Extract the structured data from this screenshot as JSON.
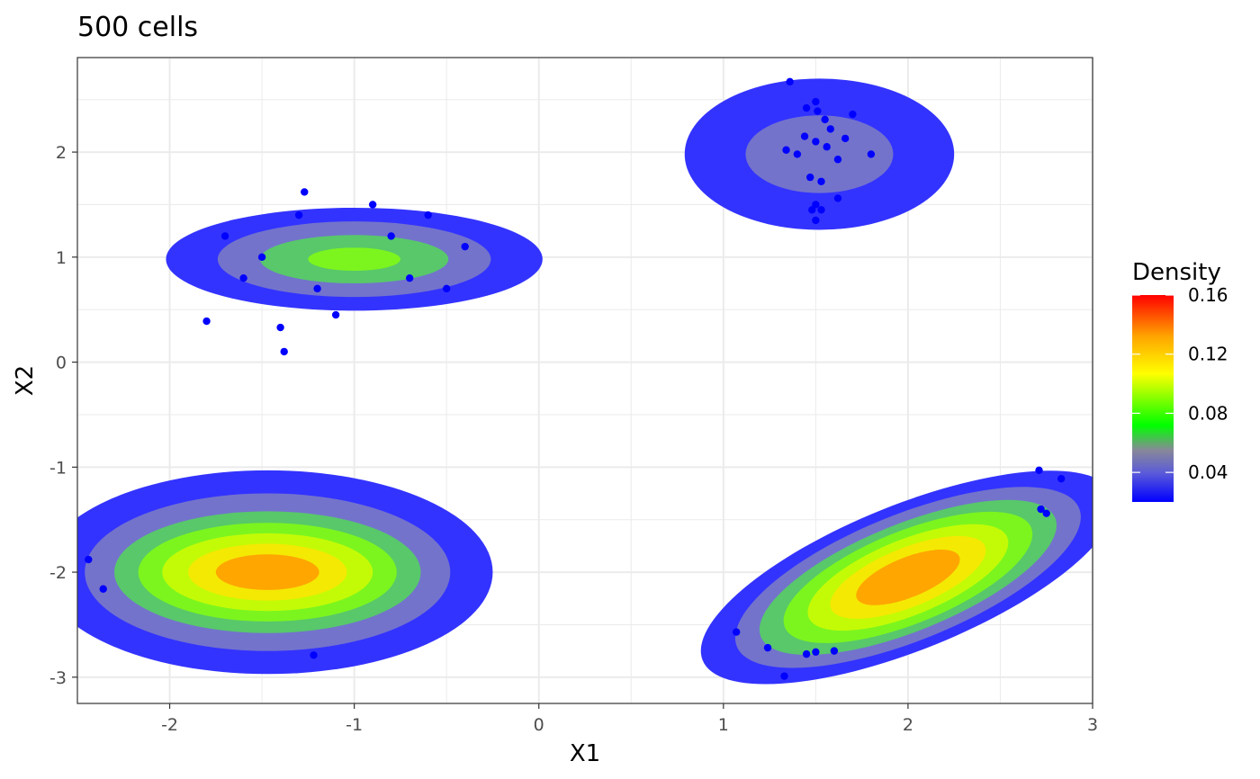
{
  "chart_data": {
    "type": "density-contour",
    "title": "500 cells",
    "xlabel": "X1",
    "ylabel": "X2",
    "xlim": [
      -2.5,
      3.0
    ],
    "ylim": [
      -3.25,
      2.9
    ],
    "x_ticks": [
      -2,
      -1,
      0,
      1,
      2,
      3
    ],
    "y_ticks": [
      -3,
      -2,
      -1,
      0,
      1,
      2
    ],
    "x_tick_labels": [
      "-2",
      "-1",
      "0",
      "1",
      "2",
      "3"
    ],
    "y_tick_labels": [
      "-3",
      "-2",
      "-1",
      "0",
      "1",
      "2"
    ],
    "grid": true,
    "legend": {
      "title": "Density",
      "placement": "right",
      "breaks": [
        0.04,
        0.08,
        0.12,
        0.16
      ],
      "labels": [
        "0.04",
        "0.08",
        "0.12",
        "0.16"
      ],
      "range": [
        0.02,
        0.16
      ],
      "gradient": [
        "#0000ff",
        "#5b5bd9",
        "#888899",
        "#00ff00",
        "#ffff00",
        "#ffa500",
        "#ff0000"
      ]
    },
    "level_colors": [
      "#3333ff",
      "#7373cc",
      "#58c86a",
      "#7cf51e",
      "#c3fb06",
      "#f4e902",
      "#ffa600",
      "#ff2500"
    ],
    "clusters": [
      {
        "name": "top-left",
        "center": [
          -1.0,
          0.98
        ],
        "levels": [
          [
            1.02,
            0.49
          ],
          [
            0.74,
            0.36
          ],
          [
            0.51,
            0.23
          ],
          [
            0.25,
            0.11
          ]
        ]
      },
      {
        "name": "top-right",
        "center": [
          1.52,
          1.98
        ],
        "levels": [
          [
            0.73,
            0.72
          ],
          [
            0.4,
            0.37
          ]
        ]
      },
      {
        "name": "bottom-left",
        "center": [
          -1.47,
          -2.0
        ],
        "levels": [
          [
            1.22,
            0.97
          ],
          [
            0.99,
            0.75
          ],
          [
            0.83,
            0.58
          ],
          [
            0.7,
            0.47
          ],
          [
            0.57,
            0.37
          ],
          [
            0.43,
            0.27
          ],
          [
            0.28,
            0.17
          ]
        ]
      },
      {
        "name": "bottom-right",
        "center": [
          2.0,
          -2.05
        ],
        "rotation_deg": 22,
        "levels": [
          [
            1.2,
            0.69
          ],
          [
            1.0,
            0.6
          ],
          [
            0.86,
            0.51
          ],
          [
            0.72,
            0.44
          ],
          [
            0.58,
            0.36
          ],
          [
            0.45,
            0.28
          ],
          [
            0.3,
            0.19
          ]
        ]
      }
    ],
    "points": [
      [
        -1.8,
        0.39
      ],
      [
        -1.4,
        0.33
      ],
      [
        -1.38,
        0.1
      ],
      [
        -1.27,
        1.62
      ],
      [
        -2.44,
        -1.88
      ],
      [
        -2.36,
        -2.16
      ],
      [
        -1.22,
        -2.79
      ],
      [
        1.36,
        2.67
      ],
      [
        1.45,
        2.42
      ],
      [
        1.5,
        2.48
      ],
      [
        1.51,
        2.39
      ],
      [
        1.7,
        2.36
      ],
      [
        1.48,
        1.45
      ],
      [
        1.5,
        1.5
      ],
      [
        1.53,
        1.45
      ],
      [
        1.5,
        1.35
      ],
      [
        1.62,
        1.56
      ],
      [
        2.71,
        -1.03
      ],
      [
        2.83,
        -1.11
      ],
      [
        2.72,
        -1.4
      ],
      [
        2.75,
        -1.44
      ],
      [
        1.33,
        -2.99
      ],
      [
        1.45,
        -2.78
      ],
      [
        1.5,
        -2.76
      ],
      [
        1.6,
        -2.75
      ],
      [
        1.24,
        -2.72
      ],
      [
        1.07,
        -2.57
      ],
      [
        1.5,
        2.1
      ],
      [
        1.56,
        2.05
      ],
      [
        1.44,
        2.15
      ],
      [
        1.62,
        1.93
      ],
      [
        1.4,
        1.98
      ],
      [
        1.58,
        2.22
      ],
      [
        1.47,
        1.76
      ],
      [
        1.66,
        2.13
      ],
      [
        1.8,
        1.98
      ],
      [
        1.34,
        2.02
      ],
      [
        1.53,
        1.72
      ],
      [
        1.55,
        2.31
      ],
      [
        -0.8,
        1.2
      ],
      [
        -1.2,
        0.7
      ],
      [
        -0.6,
        1.4
      ],
      [
        -1.5,
        1.0
      ],
      [
        -0.5,
        0.7
      ],
      [
        -1.1,
        0.45
      ],
      [
        -0.9,
        1.5
      ],
      [
        -1.7,
        1.2
      ],
      [
        -0.4,
        1.1
      ],
      [
        -1.6,
        0.8
      ],
      [
        -0.7,
        0.8
      ],
      [
        -1.3,
        1.4
      ]
    ]
  }
}
